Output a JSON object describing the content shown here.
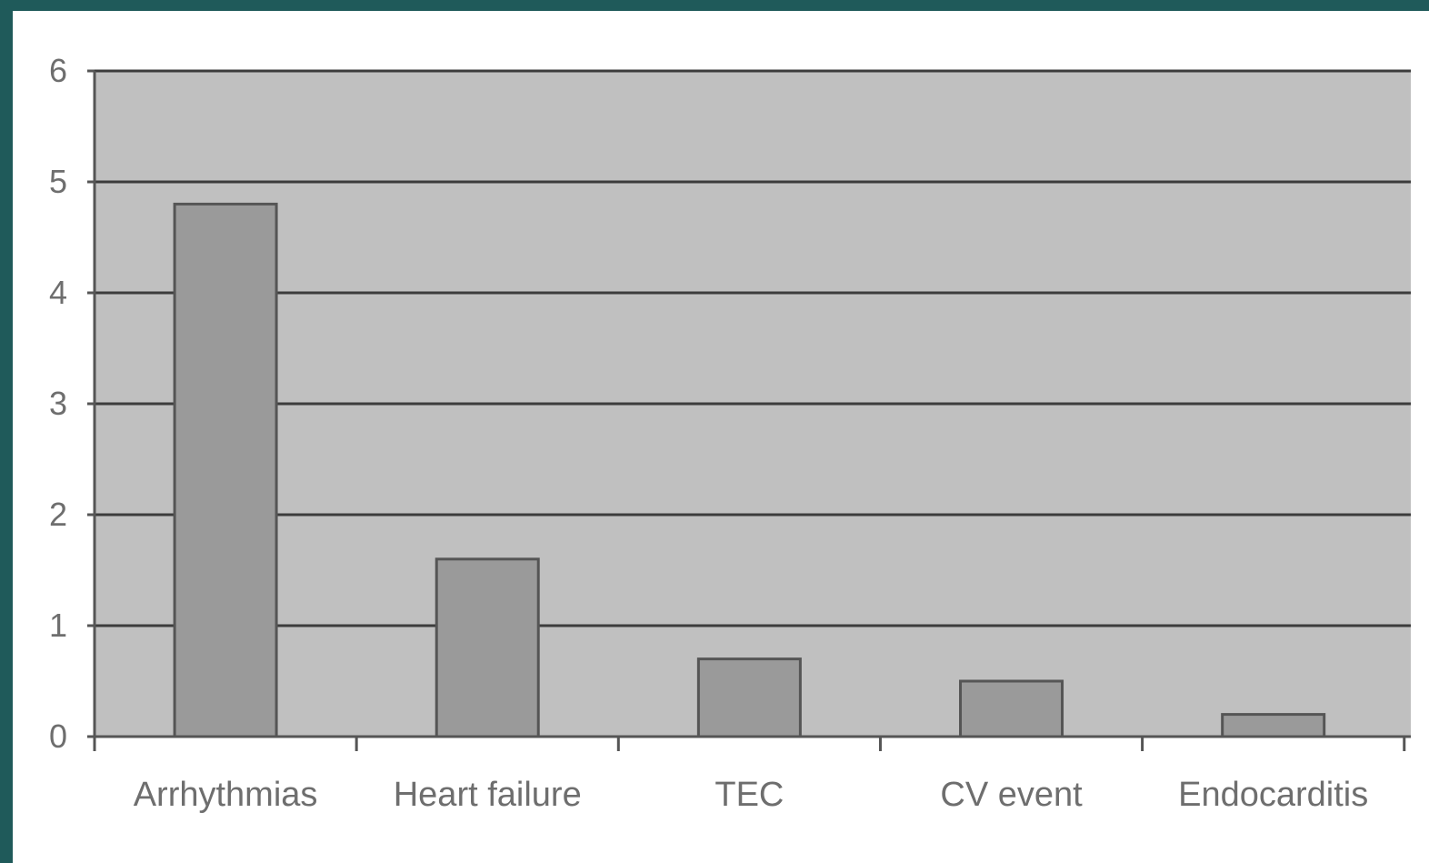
{
  "chart_data": {
    "type": "bar",
    "title": "",
    "xlabel": "",
    "ylabel": "",
    "categories": [
      "Arrhythmias",
      "Heart failure",
      "TEC",
      "CV event",
      "Endocarditis"
    ],
    "values": [
      4.8,
      1.6,
      0.7,
      0.5,
      0.2
    ],
    "ylim": [
      0,
      6
    ],
    "yticks": [
      "0",
      "1",
      "2",
      "3",
      "4",
      "5",
      "6"
    ],
    "grid": true,
    "legend": "none",
    "colors": {
      "plot_background": "#c0c0c0",
      "bar_fill": "#9a9a9a",
      "bar_stroke": "#555555",
      "gridline": "#3c3c3c",
      "tick_label": "#6e6e6e"
    }
  }
}
